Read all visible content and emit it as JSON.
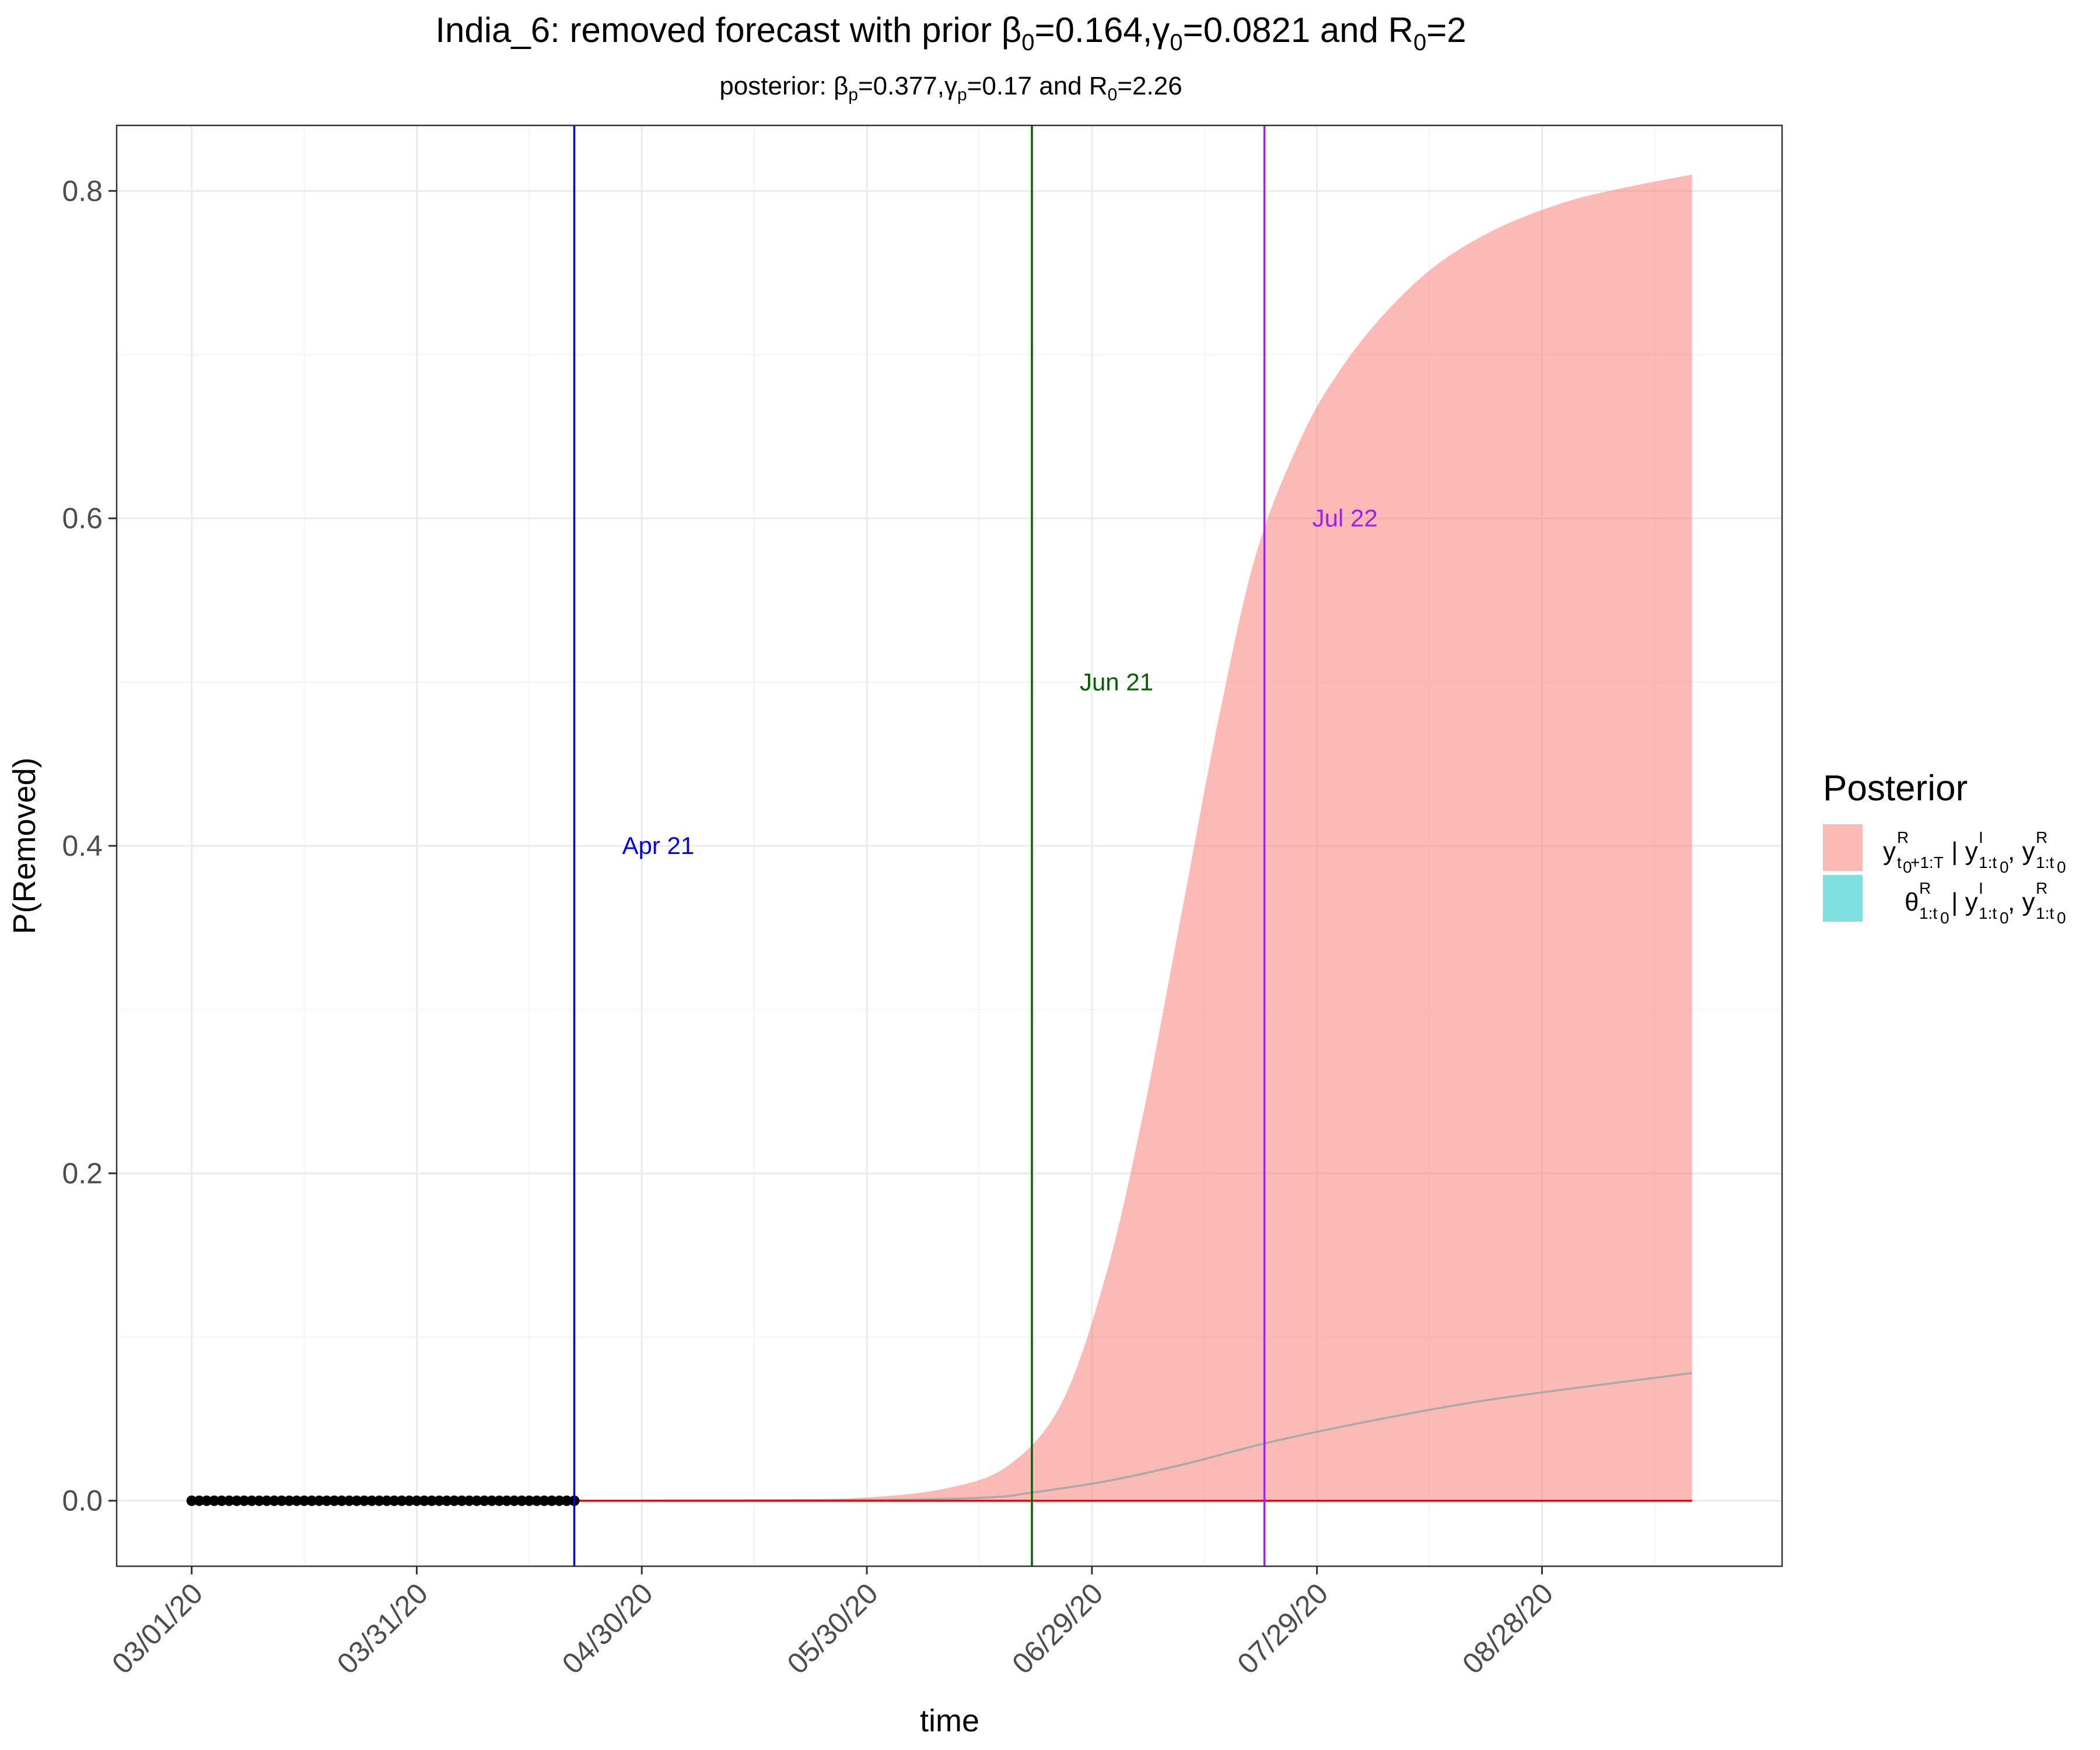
{
  "chart_data": {
    "type": "area",
    "title": "India_6: removed forecast with prior β0=0.164,γ0=0.0821 and R0=2",
    "title_parts": {
      "a": "India_6: removed forecast with prior β",
      "b": "0",
      "c": "=0.164,γ",
      "d": "0",
      "e": "=0.0821 and R",
      "f": "0",
      "g": "=2"
    },
    "subtitle": "posterior: βp=0.377,γp=0.17 and R0=2.26",
    "subtitle_parts": {
      "a": "posterior: β",
      "b": "p",
      "c": "=0.377,γ",
      "d": "p",
      "e": "=0.17 and R",
      "f": "0",
      "g": "=2.26"
    },
    "xlabel": "time",
    "ylabel": "P(Removed)",
    "x_start": "2020-03-01",
    "x_end": "2020-09-17",
    "xlim": [
      "2020-02-20",
      "2020-09-29"
    ],
    "ylim": [
      -0.04,
      0.84
    ],
    "x_ticks": [
      {
        "date": "2020-03-01",
        "label": "03/01/20"
      },
      {
        "date": "2020-03-31",
        "label": "03/31/20"
      },
      {
        "date": "2020-04-30",
        "label": "04/30/20"
      },
      {
        "date": "2020-05-30",
        "label": "05/30/20"
      },
      {
        "date": "2020-06-29",
        "label": "06/29/20"
      },
      {
        "date": "2020-07-29",
        "label": "07/29/20"
      },
      {
        "date": "2020-08-28",
        "label": "08/28/20"
      }
    ],
    "y_ticks": [
      {
        "value": 0.0,
        "label": "0.0"
      },
      {
        "value": 0.2,
        "label": "0.2"
      },
      {
        "value": 0.4,
        "label": "0.4"
      },
      {
        "value": 0.6,
        "label": "0.6"
      },
      {
        "value": 0.8,
        "label": "0.8"
      }
    ],
    "grid": true,
    "observed_points": {
      "start": "2020-03-01",
      "end": "2020-04-21",
      "value": 0.0,
      "color": "#000000"
    },
    "forecast_band_upper": [
      [
        "2020-04-21",
        0.0
      ],
      [
        "2020-05-15",
        0.0005
      ],
      [
        "2020-05-30",
        0.002
      ],
      [
        "2020-06-10",
        0.008
      ],
      [
        "2020-06-18",
        0.022
      ],
      [
        "2020-06-25",
        0.06
      ],
      [
        "2020-07-01",
        0.14
      ],
      [
        "2020-07-06",
        0.24
      ],
      [
        "2020-07-11",
        0.36
      ],
      [
        "2020-07-16",
        0.48
      ],
      [
        "2020-07-21",
        0.58
      ],
      [
        "2020-07-27",
        0.65
      ],
      [
        "2020-08-01",
        0.69
      ],
      [
        "2020-08-07",
        0.725
      ],
      [
        "2020-08-14",
        0.755
      ],
      [
        "2020-08-22",
        0.777
      ],
      [
        "2020-08-31",
        0.793
      ],
      [
        "2020-09-08",
        0.802
      ],
      [
        "2020-09-17",
        0.81
      ]
    ],
    "forecast_band_lower": 0.0,
    "band_color": "#f8766d",
    "posterior_mean": [
      [
        "2020-04-21",
        0.0
      ],
      [
        "2020-05-30",
        0.0005
      ],
      [
        "2020-06-15",
        0.002
      ],
      [
        "2020-06-21",
        0.005
      ],
      [
        "2020-07-01",
        0.012
      ],
      [
        "2020-07-11",
        0.022
      ],
      [
        "2020-07-22",
        0.035
      ],
      [
        "2020-07-31",
        0.044
      ],
      [
        "2020-08-10",
        0.053
      ],
      [
        "2020-08-20",
        0.061
      ],
      [
        "2020-08-31",
        0.068
      ],
      [
        "2020-09-17",
        0.078
      ]
    ],
    "mean_color": "#a9a9a9",
    "baseline": {
      "from": "2020-04-21",
      "to": "2020-09-17",
      "value": 0.0,
      "color": "#ff0000"
    },
    "vlines": [
      {
        "date": "2020-04-21",
        "label": "Apr 21",
        "label_y": 0.4,
        "color": "#0000ff"
      },
      {
        "date": "2020-06-21",
        "label": "Jun 21",
        "label_y": 0.5,
        "color": "#006400"
      },
      {
        "date": "2020-07-22",
        "label": "Jul 22",
        "label_y": 0.6,
        "color": "#a020f0"
      }
    ],
    "legend": {
      "title": "Posterior",
      "placement": "right",
      "entries": [
        {
          "color": "#f8766d",
          "name": "y^R_{t0+1:T} | y^I_{1:t0}, y^R_{1:t0}"
        },
        {
          "color": "#00bfc4",
          "name": "θ^R_{1:t0} | y^I_{1:t0}, y^R_{1:t0}"
        }
      ]
    }
  }
}
